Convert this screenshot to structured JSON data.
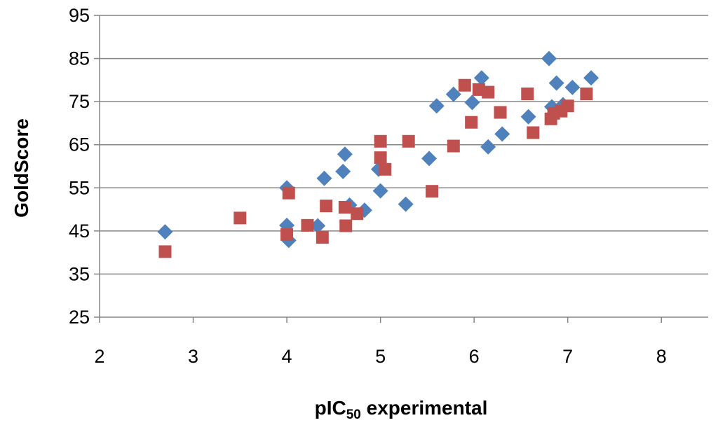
{
  "chart_data": {
    "type": "scatter",
    "title": "",
    "xlabel_main": "pIC",
    "xlabel_sub": "50",
    "xlabel_rest": " experimental",
    "ylabel": "GoldScore",
    "xlim": [
      2,
      8.5
    ],
    "ylim": [
      25,
      95
    ],
    "x_ticks": [
      2,
      3,
      4,
      5,
      6,
      7,
      8
    ],
    "y_ticks": [
      25,
      35,
      45,
      55,
      65,
      75,
      85,
      95
    ],
    "grid": "horizontal",
    "legend": "none",
    "series": [
      {
        "name": "series-1",
        "marker": "diamond",
        "color": "#4F81BD",
        "points": [
          [
            2.7,
            44.8
          ],
          [
            4.0,
            55.0
          ],
          [
            4.0,
            46.3
          ],
          [
            4.02,
            42.8
          ],
          [
            4.33,
            46.2
          ],
          [
            4.4,
            57.2
          ],
          [
            4.6,
            58.8
          ],
          [
            4.62,
            62.8
          ],
          [
            4.67,
            51.0
          ],
          [
            4.83,
            49.8
          ],
          [
            4.98,
            59.3
          ],
          [
            5.0,
            54.3
          ],
          [
            5.27,
            51.2
          ],
          [
            5.52,
            61.8
          ],
          [
            5.6,
            74.0
          ],
          [
            5.78,
            76.7
          ],
          [
            5.98,
            74.8
          ],
          [
            6.08,
            80.5
          ],
          [
            6.15,
            64.5
          ],
          [
            6.3,
            67.5
          ],
          [
            6.58,
            71.5
          ],
          [
            6.8,
            85.0
          ],
          [
            6.83,
            73.8
          ],
          [
            6.88,
            79.3
          ],
          [
            6.95,
            74.3
          ],
          [
            7.05,
            78.3
          ],
          [
            7.25,
            80.5
          ]
        ]
      },
      {
        "name": "series-2",
        "marker": "square",
        "color": "#C0504D",
        "points": [
          [
            2.7,
            40.2
          ],
          [
            3.5,
            48.0
          ],
          [
            4.0,
            44.2
          ],
          [
            4.02,
            53.8
          ],
          [
            4.22,
            46.3
          ],
          [
            4.38,
            43.5
          ],
          [
            4.42,
            50.8
          ],
          [
            4.62,
            50.5
          ],
          [
            4.63,
            46.2
          ],
          [
            4.75,
            49.0
          ],
          [
            5.0,
            65.8
          ],
          [
            5.0,
            62.0
          ],
          [
            5.05,
            59.3
          ],
          [
            5.3,
            65.8
          ],
          [
            5.55,
            54.2
          ],
          [
            5.78,
            64.7
          ],
          [
            5.9,
            78.8
          ],
          [
            5.97,
            70.2
          ],
          [
            6.05,
            77.8
          ],
          [
            6.15,
            77.2
          ],
          [
            6.28,
            72.5
          ],
          [
            6.57,
            76.8
          ],
          [
            6.63,
            67.8
          ],
          [
            6.82,
            71.0
          ],
          [
            6.85,
            72.3
          ],
          [
            6.93,
            72.8
          ],
          [
            7.0,
            74.0
          ],
          [
            7.2,
            76.8
          ]
        ]
      }
    ]
  }
}
